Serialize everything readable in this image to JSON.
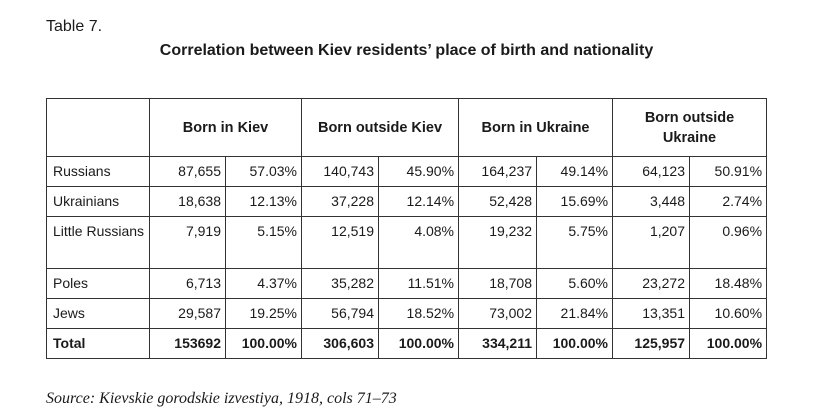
{
  "table_label": "Table 7.",
  "table_title": "Correlation between Kiev residents’ place of birth and nationality",
  "headers": [
    "",
    "Born in Kiev",
    "Born outside Kiev",
    "Born in Ukraine",
    "Born outside Ukraine"
  ],
  "rows": [
    {
      "name": "Russians",
      "cells": [
        "87,655",
        "57.03%",
        "140,743",
        "45.90%",
        "164,237",
        "49.14%",
        "64,123",
        "50.91%"
      ]
    },
    {
      "name": "Ukrainians",
      "cells": [
        "18,638",
        "12.13%",
        "37,228",
        "12.14%",
        "52,428",
        "15.69%",
        "3,448",
        "2.74%"
      ]
    },
    {
      "name": "Little Russians",
      "cells": [
        "7,919",
        "5.15%",
        "12,519",
        "4.08%",
        "19,232",
        "5.75%",
        "1,207",
        "0.96%"
      ]
    },
    {
      "name": "Poles",
      "cells": [
        "6,713",
        "4.37%",
        "35,282",
        "11.51%",
        "18,708",
        "5.60%",
        "23,272",
        "18.48%"
      ]
    },
    {
      "name": "Jews",
      "cells": [
        "29,587",
        "19.25%",
        "56,794",
        "18.52%",
        "73,002",
        "21.84%",
        "13,351",
        "10.60%"
      ]
    }
  ],
  "total": {
    "name": "Total",
    "cells": [
      "153692",
      "100.00%",
      "306,603",
      "100.00%",
      "334,211",
      "100.00%",
      "125,957",
      "100.00%"
    ]
  },
  "source": "Source: Kievskie gorodskie izvestiya, 1918, cols 71–73"
}
